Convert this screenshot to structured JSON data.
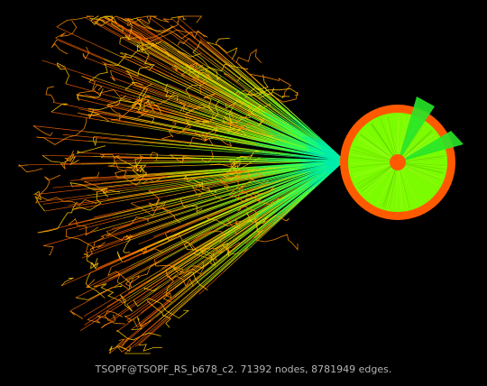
{
  "caption": "TSOPF@TSOPF_RS_b678_c2. 71392 nodes, 8781949 edges.",
  "colors": {
    "background": "#000000",
    "hub_fill": "#7cfc00",
    "hub_rim": "#ff5a00",
    "caption_text": "#b4b4b4"
  }
}
